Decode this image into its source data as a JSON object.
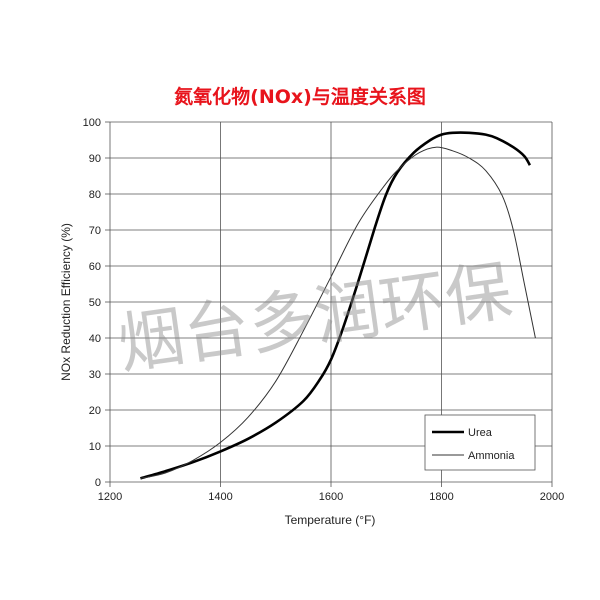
{
  "watermark": "烟台多润环保",
  "chart_data": {
    "type": "line",
    "title": "氮氧化物(NOx)与温度关系图",
    "xlabel": "Temperature (°F)",
    "ylabel": "NOx Reduction Efficiency (%)",
    "xlim": [
      1200,
      2000
    ],
    "ylim": [
      0,
      100
    ],
    "xticks": [
      1200,
      1400,
      1600,
      1800,
      2000
    ],
    "yticks": [
      0,
      10,
      20,
      30,
      40,
      50,
      60,
      70,
      80,
      90,
      100
    ],
    "grid": true,
    "legend_position": "bottom-right",
    "series": [
      {
        "name": "Urea",
        "color": "#000000",
        "style": "bold",
        "x": [
          1255,
          1300,
          1350,
          1400,
          1450,
          1500,
          1550,
          1580,
          1600,
          1620,
          1650,
          1680,
          1700,
          1720,
          1750,
          1780,
          1800,
          1820,
          1850,
          1880,
          1900,
          1930,
          1950,
          1960
        ],
        "y": [
          1,
          3,
          5.5,
          8.5,
          12,
          16.5,
          22.5,
          28.5,
          34,
          42,
          56,
          71,
          80,
          86,
          91.5,
          95,
          96.5,
          97,
          97,
          96.5,
          95.5,
          93,
          90.5,
          88
        ]
      },
      {
        "name": "Ammonia",
        "color": "#333333",
        "style": "thin",
        "x": [
          1255,
          1300,
          1350,
          1400,
          1450,
          1500,
          1550,
          1600,
          1650,
          1700,
          1730,
          1760,
          1790,
          1820,
          1850,
          1880,
          1910,
          1930,
          1950,
          1970
        ],
        "y": [
          1,
          2.5,
          6,
          11,
          18,
          28,
          42,
          57,
          72,
          83,
          88,
          91.5,
          93,
          92,
          90,
          86.5,
          79.5,
          70,
          55,
          40
        ]
      }
    ]
  }
}
